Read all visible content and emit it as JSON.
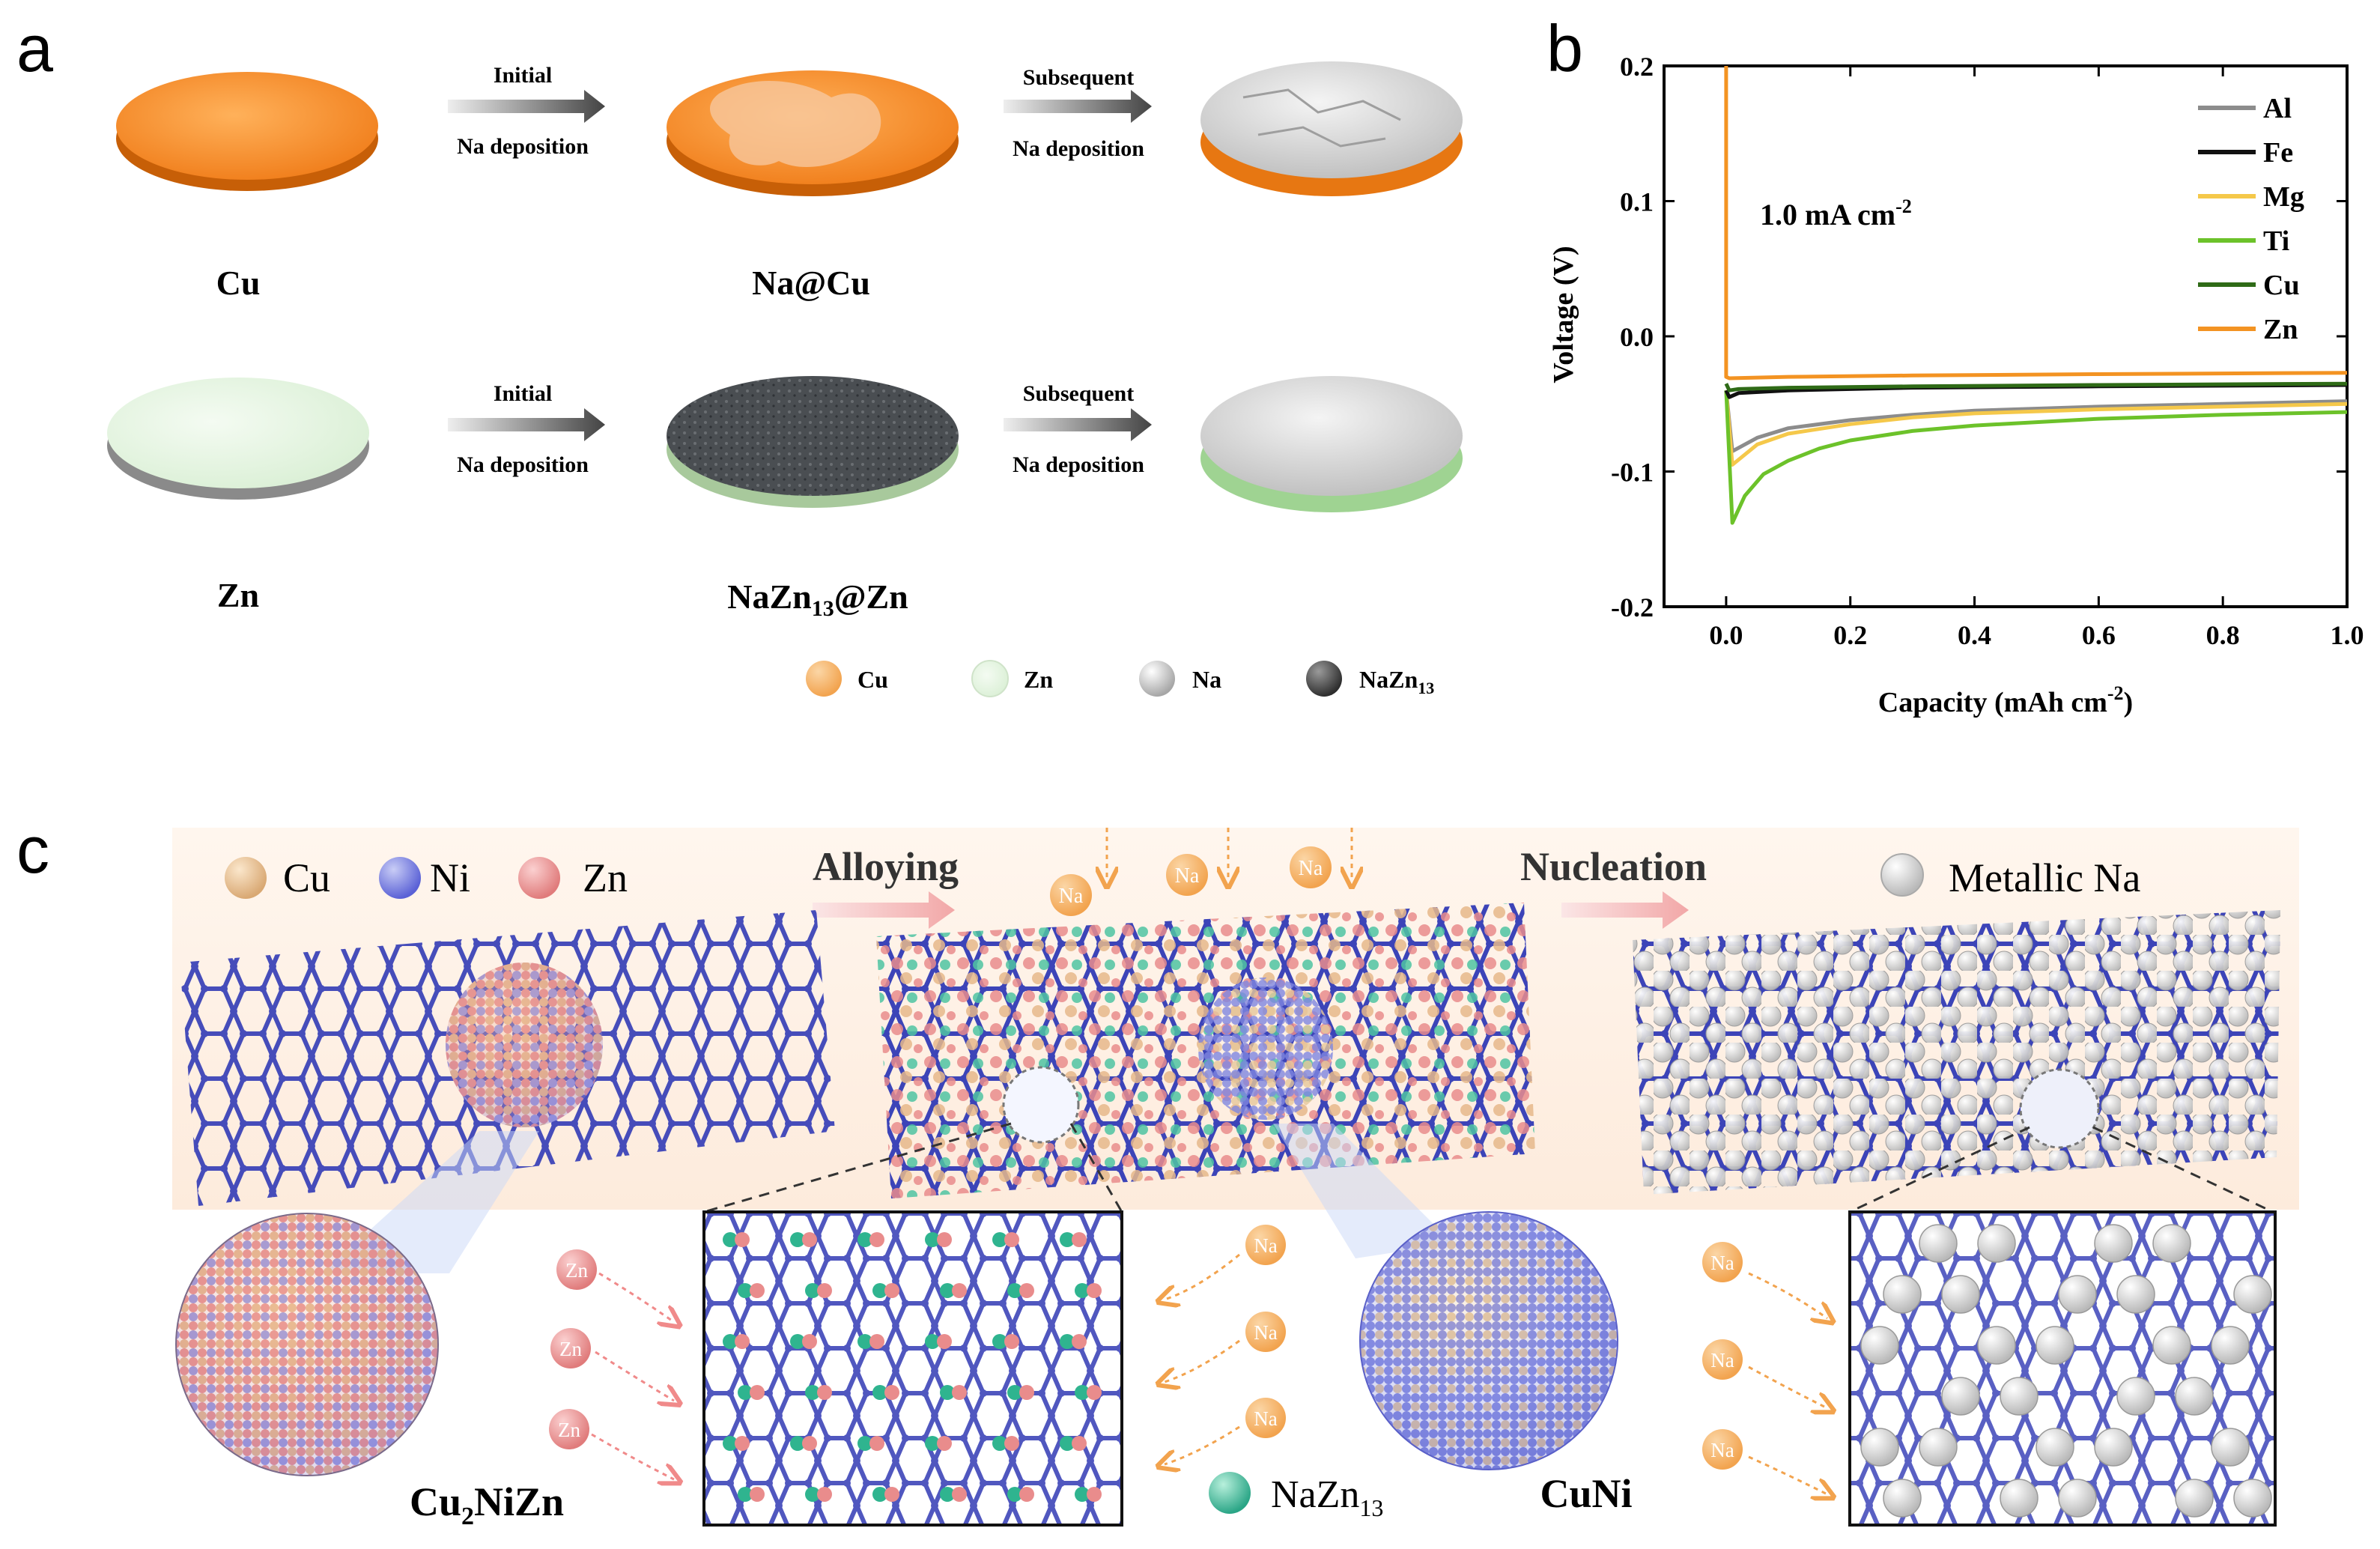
{
  "panel_letters": {
    "a": "a",
    "b": "b",
    "c": "c"
  },
  "panel_a": {
    "row_cu": {
      "substrate": "Cu",
      "step1": {
        "line1": "Initial",
        "line2": "Na deposition"
      },
      "intermediate": "Na@Cu",
      "step2": {
        "line1": "Subsequent",
        "line2": "Na deposition"
      }
    },
    "row_zn": {
      "substrate": "Zn",
      "step1": {
        "line1": "Initial",
        "line2": "Na deposition"
      },
      "intermediate_main": "NaZn",
      "intermediate_sub": "13",
      "intermediate_tail": "@Zn",
      "step2": {
        "line1": "Subsequent",
        "line2": "Na deposition"
      }
    },
    "legend": [
      {
        "label": "Cu",
        "color": "#f07d1a"
      },
      {
        "label": "Zn",
        "color": "#dff0dc"
      },
      {
        "label": "Na",
        "color": "#c9c9c9"
      },
      {
        "label_main": "NaZn",
        "label_sub": "13",
        "color": "#4a4a4a"
      }
    ]
  },
  "chart_data": {
    "type": "line",
    "xlabel_main": "Capacity (mAh cm",
    "xlabel_sup": "-2",
    "xlabel_tail": ")",
    "ylabel": "Voltage (V)",
    "annotation_main": "1.0 mA cm",
    "annotation_sup": "-2",
    "xlim": [
      -0.1,
      1.0
    ],
    "ylim": [
      -0.2,
      0.2
    ],
    "xticks": [
      "0.0",
      "0.2",
      "0.4",
      "0.6",
      "0.8",
      "1.0"
    ],
    "yticks": [
      "-0.2",
      "-0.1",
      "0.0",
      "0.1",
      "0.2"
    ],
    "legend_position": "top-right",
    "series": [
      {
        "name": "Al",
        "color": "#8c8c8c",
        "x": [
          0.0,
          0.01,
          0.05,
          0.1,
          0.2,
          0.3,
          0.4,
          0.6,
          0.8,
          1.0
        ],
        "y": [
          -0.04,
          -0.085,
          -0.075,
          -0.068,
          -0.062,
          -0.058,
          -0.055,
          -0.052,
          -0.05,
          -0.048
        ]
      },
      {
        "name": "Fe",
        "color": "#111111",
        "x": [
          0.0,
          0.005,
          0.02,
          0.1,
          0.3,
          0.6,
          1.0
        ],
        "y": [
          -0.04,
          -0.045,
          -0.042,
          -0.04,
          -0.038,
          -0.037,
          -0.036
        ]
      },
      {
        "name": "Mg",
        "color": "#f5c84a",
        "x": [
          0.0,
          0.01,
          0.05,
          0.1,
          0.2,
          0.3,
          0.4,
          0.6,
          0.8,
          1.0
        ],
        "y": [
          -0.04,
          -0.095,
          -0.08,
          -0.072,
          -0.065,
          -0.06,
          -0.057,
          -0.054,
          -0.052,
          -0.05
        ]
      },
      {
        "name": "Ti",
        "color": "#6cc22a",
        "x": [
          0.0,
          0.01,
          0.03,
          0.06,
          0.1,
          0.15,
          0.2,
          0.3,
          0.4,
          0.6,
          0.8,
          1.0
        ],
        "y": [
          -0.04,
          -0.138,
          -0.118,
          -0.102,
          -0.092,
          -0.083,
          -0.077,
          -0.07,
          -0.066,
          -0.061,
          -0.058,
          -0.056
        ]
      },
      {
        "name": "Cu",
        "color": "#2f6b17",
        "x": [
          0.0,
          0.005,
          0.02,
          0.1,
          0.3,
          0.6,
          1.0
        ],
        "y": [
          -0.035,
          -0.04,
          -0.039,
          -0.038,
          -0.037,
          -0.036,
          -0.035
        ]
      },
      {
        "name": "Zn",
        "color": "#f39322",
        "x": [
          0.0,
          0.0,
          0.005,
          0.1,
          0.3,
          0.6,
          1.0
        ],
        "y": [
          0.2,
          -0.03,
          -0.031,
          -0.03,
          -0.029,
          -0.028,
          -0.027
        ]
      }
    ]
  },
  "panel_c": {
    "legend": [
      {
        "label": "Cu",
        "color": "#e6b88a"
      },
      {
        "label": "Ni",
        "color": "#7f86e0"
      },
      {
        "label": "Zn",
        "color": "#e98c8c"
      }
    ],
    "step1": "Alloying",
    "step2": "Nucleation",
    "metallic_label": "Metallic Na",
    "ion_na": "Na",
    "ion_zn": "Zn",
    "alloy1_main": "Cu",
    "alloy1_sub": "2",
    "alloy1_tail": "NiZn",
    "alloy2": "CuNi",
    "nazn_main": "NaZn",
    "nazn_sub": "13"
  }
}
